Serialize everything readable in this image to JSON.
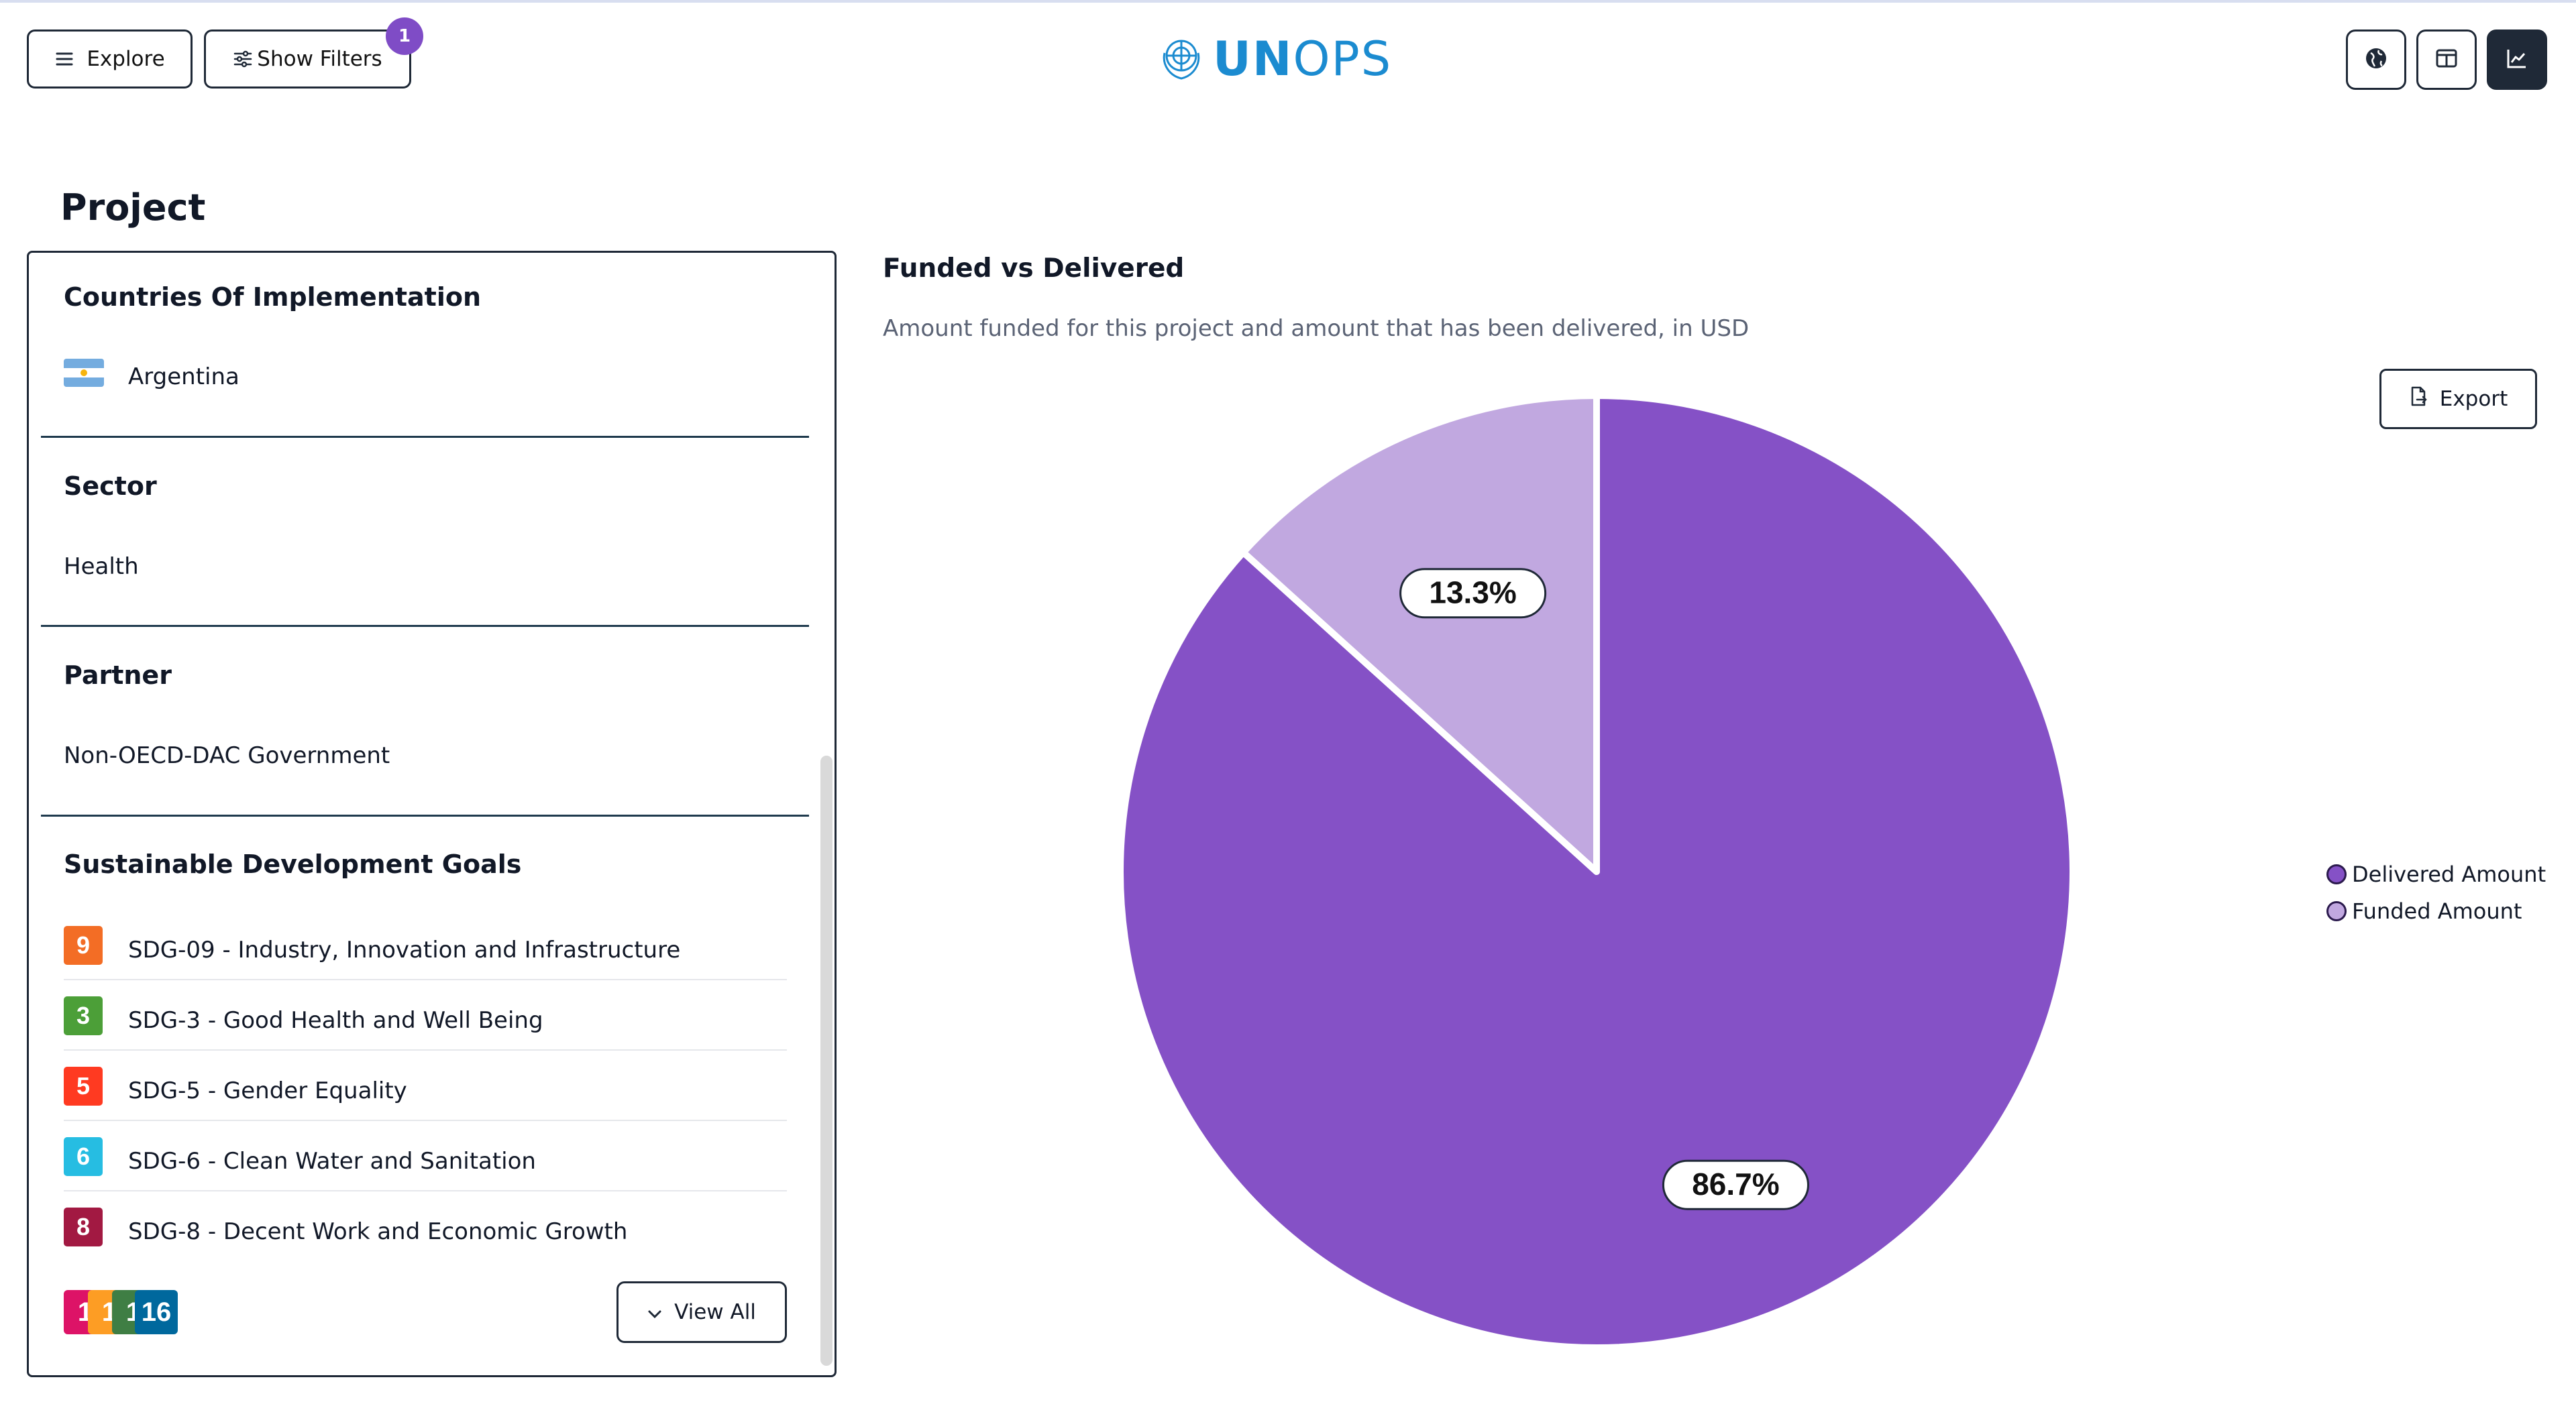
{
  "header": {
    "explore_label": "Explore",
    "filters_label": "Show Filters",
    "filters_badge": "1",
    "logo_text_bold": "UN",
    "logo_text_rest": "OPS"
  },
  "page": {
    "title": "Project"
  },
  "panel": {
    "countries": {
      "heading": "Countries Of Implementation",
      "items": [
        "Argentina"
      ]
    },
    "sector": {
      "heading": "Sector",
      "value": "Health"
    },
    "partner": {
      "heading": "Partner",
      "value": "Non-OECD-DAC Government"
    },
    "sdgs": {
      "heading": "Sustainable Development Goals",
      "items": [
        {
          "number": "9",
          "label": "SDG-09 - Industry, Innovation and Infrastructure",
          "color": "#f36d25"
        },
        {
          "number": "3",
          "label": "SDG-3 - Good Health and Well Being",
          "color": "#4c9f38"
        },
        {
          "number": "5",
          "label": "SDG-5 - Gender Equality",
          "color": "#ff3a21"
        },
        {
          "number": "6",
          "label": "SDG-6 - Clean Water and Sanitation",
          "color": "#26bde2"
        },
        {
          "number": "8",
          "label": "SDG-8 - Decent Work and Economic Growth",
          "color": "#a21942"
        }
      ],
      "more_icons": [
        {
          "number": "1",
          "color": "#dd1367"
        },
        {
          "number": "1",
          "color": "#fd9d24"
        },
        {
          "number": "1",
          "color": "#3f7e44"
        },
        {
          "number": "16",
          "color": "#00689d"
        }
      ],
      "view_all_label": "View All"
    }
  },
  "chart": {
    "title": "Funded vs Delivered",
    "subtitle": "Amount funded for this project and amount that has been delivered, in USD",
    "export_label": "Export"
  },
  "chart_data": {
    "type": "pie",
    "series": [
      {
        "name": "Delivered Amount",
        "value": 86.7,
        "label": "86.7%",
        "color": "#8551c6"
      },
      {
        "name": "Funded Amount",
        "value": 13.3,
        "label": "13.3%",
        "color": "#c1a8e0"
      }
    ],
    "legend_placement": "right"
  }
}
